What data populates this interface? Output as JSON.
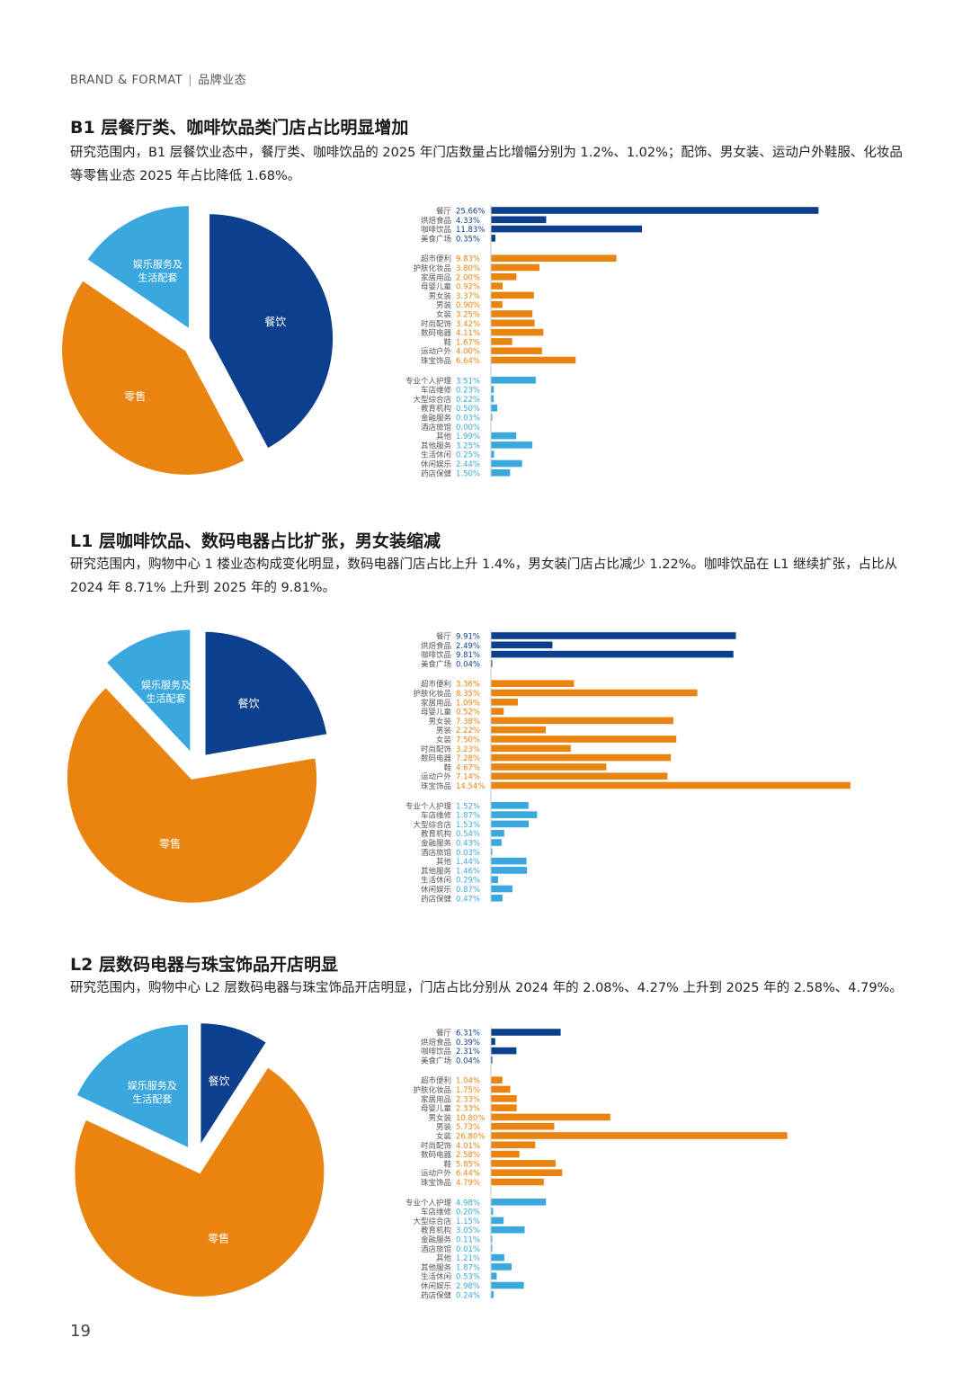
{
  "header": {
    "brand": "BRAND & FORMAT",
    "section": "品牌业态"
  },
  "page_number": "19",
  "colors": {
    "food": "#0d3f8f",
    "retail": "#e8840f",
    "service": "#3aa7df"
  },
  "sections": [
    {
      "title": "B1 层餐厅类、咖啡饮品类门店占比明显增加",
      "desc": "研究范围内，B1 层餐饮业态中，餐厅类、咖啡饮品的 2025 年门店数量占比增幅分别为 1.2%、1.02%；配饰、男女装、运动户外鞋服、化妆品等零售业态 2025 年占比降低 1.68%。",
      "pie_labels": {
        "food": "餐饮",
        "retail": "零售",
        "service_line1": "娱乐服务及",
        "service_line2": "生活配套"
      }
    },
    {
      "title": "L1 层咖啡饮品、数码电器占比扩张，男女装缩减",
      "desc": "研究范围内，购物中心 1 楼业态构成变化明显，数码电器门店占比上升 1.4%，男女装门店占比减少 1.22%。咖啡饮品在 L1 继续扩张，占比从 2024 年 8.71% 上升到 2025 年的 9.81%。",
      "pie_labels": {
        "food": "餐饮",
        "retail": "零售",
        "service_line1": "娱乐服务及",
        "service_line2": "生活配套"
      }
    },
    {
      "title": "L2 层数码电器与珠宝饰品开店明显",
      "desc": "研究范围内，购物中心 L2 层数码电器与珠宝饰品开店明显，门店占比分别从 2024 年的 2.08%、4.27% 上升到 2025 年的 2.58%、4.79%。",
      "pie_labels": {
        "food": "餐饮",
        "retail": "零售",
        "service_line1": "娱乐服务及",
        "service_line2": "生活配套"
      }
    }
  ],
  "chart_data": [
    {
      "type": "pie",
      "slices": [
        {
          "name": "餐饮",
          "value": 42.2
        },
        {
          "name": "零售",
          "value": 42.3
        },
        {
          "name": "娱乐服务及生活配套",
          "value": 15.5
        }
      ]
    },
    {
      "type": "bar",
      "orientation": "horizontal",
      "groups": [
        {
          "group": "food",
          "items": [
            {
              "label": "餐厅",
              "value": 25.66,
              "text": "25.66%"
            },
            {
              "label": "烘焙食品",
              "value": 4.33,
              "text": "4.33%"
            },
            {
              "label": "咖啡饮品",
              "value": 11.83,
              "text": "11.83%"
            },
            {
              "label": "美食广场",
              "value": 0.35,
              "text": "0.35%"
            }
          ]
        },
        {
          "group": "retail",
          "items": [
            {
              "label": "超市便利",
              "value": 9.83,
              "text": "9.83%"
            },
            {
              "label": "护肤化妆品",
              "value": 3.8,
              "text": "3.80%"
            },
            {
              "label": "家居用品",
              "value": 2.0,
              "text": "2.00%"
            },
            {
              "label": "母婴儿童",
              "value": 0.92,
              "text": "0.92%"
            },
            {
              "label": "男女装",
              "value": 3.37,
              "text": "3.37%"
            },
            {
              "label": "男装",
              "value": 0.9,
              "text": "0.90%"
            },
            {
              "label": "女装",
              "value": 3.25,
              "text": "3.25%"
            },
            {
              "label": "时尚配饰",
              "value": 3.42,
              "text": "3.42%"
            },
            {
              "label": "数码电器",
              "value": 4.11,
              "text": "4.11%"
            },
            {
              "label": "鞋",
              "value": 1.67,
              "text": "1.67%"
            },
            {
              "label": "运动户外",
              "value": 4.0,
              "text": "4.00%"
            },
            {
              "label": "珠宝饰品",
              "value": 6.64,
              "text": "6.64%"
            }
          ]
        },
        {
          "group": "service",
          "items": [
            {
              "label": "专业个人护理",
              "value": 3.51,
              "text": "3.51%"
            },
            {
              "label": "车店维修",
              "value": 0.23,
              "text": "0.23%"
            },
            {
              "label": "大型综合店",
              "value": 0.22,
              "text": "0.22%"
            },
            {
              "label": "教育机构",
              "value": 0.5,
              "text": "0.50%"
            },
            {
              "label": "金融服务",
              "value": 0.03,
              "text": "0.03%"
            },
            {
              "label": "酒店旅馆",
              "value": 0.0,
              "text": "0.00%"
            },
            {
              "label": "其他",
              "value": 1.99,
              "text": "1.99%"
            },
            {
              "label": "其他服务",
              "value": 3.25,
              "text": "3.25%"
            },
            {
              "label": "生活休闲",
              "value": 0.25,
              "text": "0.25%"
            },
            {
              "label": "休闲娱乐",
              "value": 2.44,
              "text": "2.44%"
            },
            {
              "label": "药店保健",
              "value": 1.5,
              "text": "1.50%"
            }
          ]
        }
      ]
    },
    {
      "type": "pie",
      "slices": [
        {
          "name": "餐饮",
          "value": 22.3
        },
        {
          "name": "零售",
          "value": 65.7
        },
        {
          "name": "娱乐服务及生活配套",
          "value": 12.0
        }
      ]
    },
    {
      "type": "bar",
      "orientation": "horizontal",
      "groups": [
        {
          "group": "food",
          "items": [
            {
              "label": "餐厅",
              "value": 9.91,
              "text": "9.91%"
            },
            {
              "label": "烘焙食品",
              "value": 2.49,
              "text": "2.49%"
            },
            {
              "label": "咖啡饮品",
              "value": 9.81,
              "text": "9.81%"
            },
            {
              "label": "美食广场",
              "value": 0.04,
              "text": "0.04%"
            }
          ]
        },
        {
          "group": "retail",
          "items": [
            {
              "label": "超市便利",
              "value": 3.36,
              "text": "3.36%"
            },
            {
              "label": "护肤化妆品",
              "value": 8.35,
              "text": "8.35%"
            },
            {
              "label": "家居用品",
              "value": 1.09,
              "text": "1.09%"
            },
            {
              "label": "母婴儿童",
              "value": 0.52,
              "text": "0.52%"
            },
            {
              "label": "男女装",
              "value": 7.38,
              "text": "7.38%"
            },
            {
              "label": "男装",
              "value": 2.22,
              "text": "2.22%"
            },
            {
              "label": "女装",
              "value": 7.5,
              "text": "7.50%"
            },
            {
              "label": "时尚配饰",
              "value": 3.23,
              "text": "3.23%"
            },
            {
              "label": "数码电器",
              "value": 7.28,
              "text": "7.28%"
            },
            {
              "label": "鞋",
              "value": 4.67,
              "text": "4.67%"
            },
            {
              "label": "运动户外",
              "value": 7.14,
              "text": "7.14%"
            },
            {
              "label": "珠宝饰品",
              "value": 14.54,
              "text": "14.54%"
            }
          ]
        },
        {
          "group": "service",
          "items": [
            {
              "label": "专业个人护理",
              "value": 1.52,
              "text": "1.52%"
            },
            {
              "label": "车店维修",
              "value": 1.87,
              "text": "1.87%"
            },
            {
              "label": "大型综合店",
              "value": 1.53,
              "text": "1.53%"
            },
            {
              "label": "教育机构",
              "value": 0.54,
              "text": "0.54%"
            },
            {
              "label": "金融服务",
              "value": 0.43,
              "text": "0.43%"
            },
            {
              "label": "酒店旅馆",
              "value": 0.03,
              "text": "0.03%"
            },
            {
              "label": "其他",
              "value": 1.44,
              "text": "1.44%"
            },
            {
              "label": "其他服务",
              "value": 1.46,
              "text": "1.46%"
            },
            {
              "label": "生活休闲",
              "value": 0.29,
              "text": "0.29%"
            },
            {
              "label": "休闲娱乐",
              "value": 0.87,
              "text": "0.87%"
            },
            {
              "label": "药店保健",
              "value": 0.47,
              "text": "0.47%"
            }
          ]
        }
      ]
    },
    {
      "type": "pie",
      "slices": [
        {
          "name": "餐饮",
          "value": 9.1
        },
        {
          "name": "零售",
          "value": 72.9
        },
        {
          "name": "娱乐服务及生活配套",
          "value": 18.0
        }
      ]
    },
    {
      "type": "bar",
      "orientation": "horizontal",
      "groups": [
        {
          "group": "food",
          "items": [
            {
              "label": "餐厅",
              "value": 6.31,
              "text": "6.31%"
            },
            {
              "label": "烘焙食品",
              "value": 0.39,
              "text": "0.39%"
            },
            {
              "label": "咖啡饮品",
              "value": 2.31,
              "text": "2.31%"
            },
            {
              "label": "美食广场",
              "value": 0.04,
              "text": "0.04%"
            }
          ]
        },
        {
          "group": "retail",
          "items": [
            {
              "label": "超市便利",
              "value": 1.04,
              "text": "1.04%"
            },
            {
              "label": "护肤化妆品",
              "value": 1.75,
              "text": "1.75%"
            },
            {
              "label": "家居用品",
              "value": 2.33,
              "text": "2.33%"
            },
            {
              "label": "母婴儿童",
              "value": 2.33,
              "text": "2.33%"
            },
            {
              "label": "男女装",
              "value": 10.8,
              "text": "10.80%"
            },
            {
              "label": "男装",
              "value": 5.73,
              "text": "5.73%"
            },
            {
              "label": "女装",
              "value": 26.8,
              "text": "26.80%"
            },
            {
              "label": "时尚配饰",
              "value": 4.01,
              "text": "4.01%"
            },
            {
              "label": "数码电器",
              "value": 2.58,
              "text": "2.58%"
            },
            {
              "label": "鞋",
              "value": 5.85,
              "text": "5.85%"
            },
            {
              "label": "运动户外",
              "value": 6.44,
              "text": "6.44%"
            },
            {
              "label": "珠宝饰品",
              "value": 4.79,
              "text": "4.79%"
            }
          ]
        },
        {
          "group": "service",
          "items": [
            {
              "label": "专业个人护理",
              "value": 4.98,
              "text": "4.98%"
            },
            {
              "label": "车店维修",
              "value": 0.2,
              "text": "0.20%"
            },
            {
              "label": "大型综合店",
              "value": 1.15,
              "text": "1.15%"
            },
            {
              "label": "教育机构",
              "value": 3.05,
              "text": "3.05%"
            },
            {
              "label": "金融服务",
              "value": 0.11,
              "text": "0.11%"
            },
            {
              "label": "酒店旅馆",
              "value": 0.01,
              "text": "0.01%"
            },
            {
              "label": "其他",
              "value": 1.21,
              "text": "1.21%"
            },
            {
              "label": "其他服务",
              "value": 1.87,
              "text": "1.87%"
            },
            {
              "label": "生活休闲",
              "value": 0.53,
              "text": "0.53%"
            },
            {
              "label": "休闲娱乐",
              "value": 2.98,
              "text": "2.98%"
            },
            {
              "label": "药店保健",
              "value": 0.24,
              "text": "0.24%"
            }
          ]
        }
      ]
    }
  ]
}
